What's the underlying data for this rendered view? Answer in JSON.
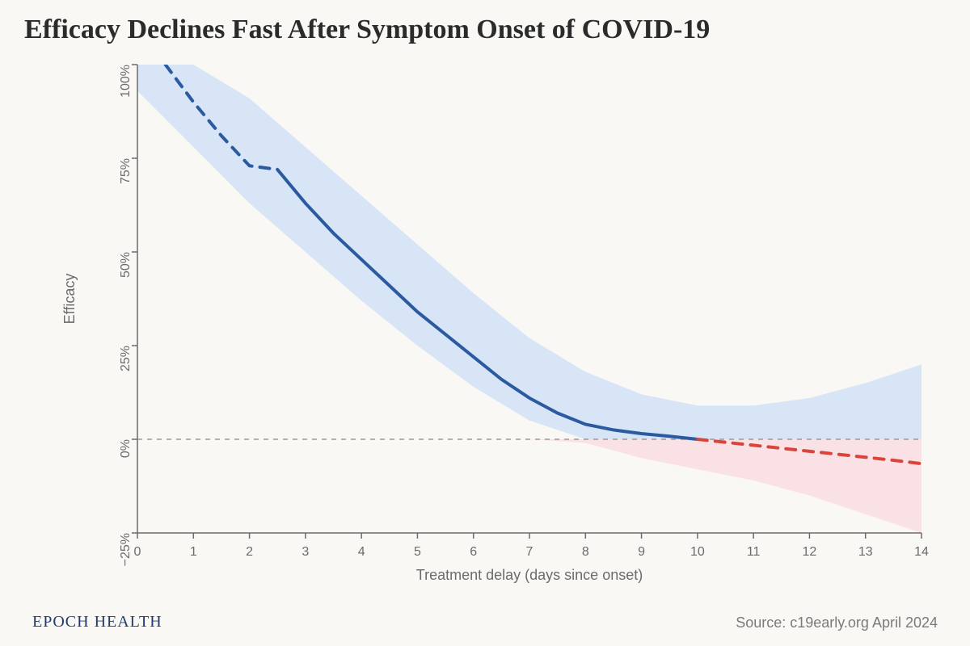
{
  "title": "Efficacy Declines Fast After Symptom Onset of COVID-19",
  "title_fontsize": 34,
  "title_color": "#2b2b2b",
  "brand": "EPOCH HEALTH",
  "brand_color": "#1f3a6e",
  "brand_fontsize": 20,
  "source": "Source: c19early.org April 2024",
  "source_color": "#7a7a7a",
  "source_fontsize": 18,
  "background_color": "#faf8f4",
  "chart": {
    "type": "line",
    "xlabel": "Treatment delay (days since onset)",
    "ylabel": "Efficacy",
    "label_fontsize": 18,
    "tick_fontsize": 16,
    "xlim": [
      0,
      14
    ],
    "ylim": [
      -25,
      100
    ],
    "xticks": [
      0,
      1,
      2,
      3,
      4,
      5,
      6,
      7,
      8,
      9,
      10,
      11,
      12,
      13,
      14
    ],
    "yticks": [
      -25,
      0,
      25,
      50,
      75,
      100
    ],
    "ytick_labels": [
      "−25%",
      "0%",
      "25%",
      "50%",
      "75%",
      "100%"
    ],
    "axis_color": "#6b6b6b",
    "tick_color": "#6b6b6b",
    "zero_line_color": "#9a9a9a",
    "zero_line_dash": "6 6",
    "conf_upper": [
      [
        0,
        100
      ],
      [
        1,
        100
      ],
      [
        2,
        91
      ],
      [
        3,
        78
      ],
      [
        4,
        65
      ],
      [
        5,
        52
      ],
      [
        6,
        39
      ],
      [
        7,
        27
      ],
      [
        8,
        18
      ],
      [
        9,
        12
      ],
      [
        10,
        9
      ],
      [
        11,
        9
      ],
      [
        12,
        11
      ],
      [
        13,
        15
      ],
      [
        14,
        20
      ]
    ],
    "conf_lower": [
      [
        0,
        93
      ],
      [
        1,
        78
      ],
      [
        2,
        63
      ],
      [
        3,
        50
      ],
      [
        4,
        37
      ],
      [
        5,
        25
      ],
      [
        6,
        14
      ],
      [
        7,
        5
      ],
      [
        8,
        -1
      ],
      [
        9,
        -5
      ],
      [
        10,
        -8
      ],
      [
        11,
        -11
      ],
      [
        12,
        -15
      ],
      [
        13,
        -20
      ],
      [
        14,
        -25
      ]
    ],
    "conf_color_pos": "#d7e5f7",
    "conf_color_neg": "#fae1e5",
    "segments": [
      {
        "name": "dashed-blue-start",
        "color": "#2c5aa0",
        "width": 4,
        "dash": "12 10",
        "points": [
          [
            0.5,
            100
          ],
          [
            1,
            90
          ],
          [
            1.5,
            81
          ],
          [
            2,
            73
          ],
          [
            2.5,
            72
          ]
        ]
      },
      {
        "name": "solid-blue-main",
        "color": "#2c5aa0",
        "width": 4,
        "dash": "none",
        "points": [
          [
            2.5,
            72
          ],
          [
            3,
            63
          ],
          [
            3.5,
            55
          ],
          [
            4,
            48
          ],
          [
            4.5,
            41
          ],
          [
            5,
            34
          ],
          [
            5.5,
            28
          ],
          [
            6,
            22
          ],
          [
            6.5,
            16
          ],
          [
            7,
            11
          ],
          [
            7.5,
            7
          ],
          [
            8,
            4
          ],
          [
            8.5,
            2.5
          ],
          [
            9,
            1.5
          ],
          [
            9.5,
            0.8
          ],
          [
            10,
            0
          ]
        ]
      },
      {
        "name": "dashed-red-tail",
        "color": "#d9453a",
        "width": 4,
        "dash": "12 10",
        "points": [
          [
            10,
            0
          ],
          [
            10.5,
            -0.8
          ],
          [
            11,
            -1.6
          ],
          [
            11.5,
            -2.4
          ],
          [
            12,
            -3.2
          ],
          [
            12.5,
            -4
          ],
          [
            13,
            -4.8
          ],
          [
            13.5,
            -5.6
          ],
          [
            14,
            -6.5
          ]
        ]
      }
    ]
  }
}
